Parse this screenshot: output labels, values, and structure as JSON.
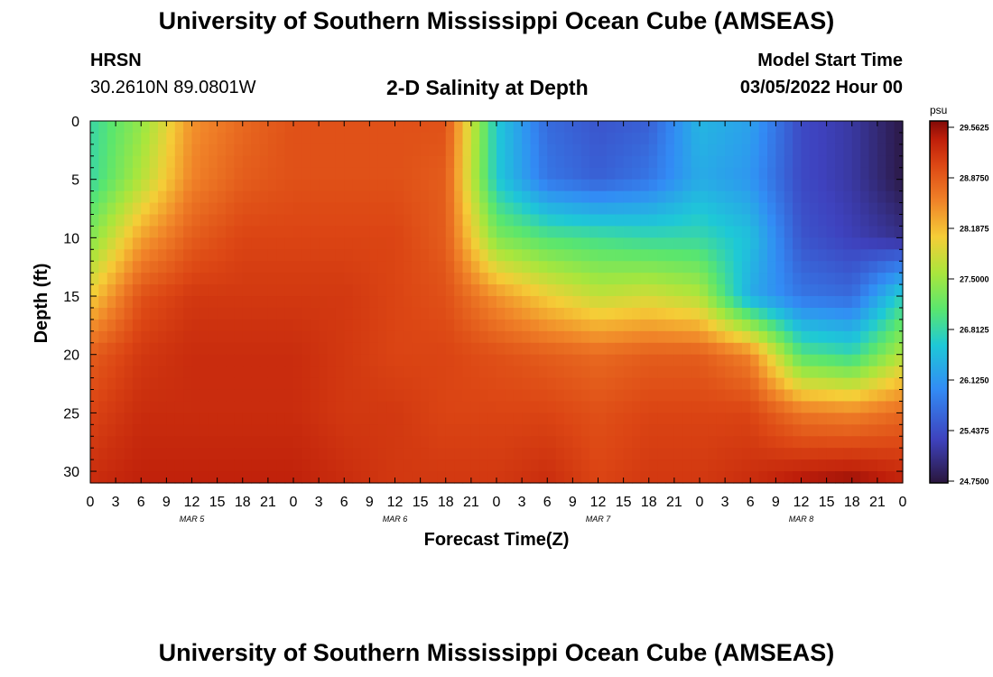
{
  "header": {
    "title": "University of Southern Mississippi Ocean Cube (AMSEAS)",
    "station_name": "HRSN",
    "station_coords": "30.2610N  89.0801W",
    "plot_title": "2-D Salinity at Depth",
    "model_start_label": "Model Start Time",
    "model_start_value": "03/05/2022 Hour 00"
  },
  "footer": {
    "repeat_title": "University of Southern Mississippi Ocean Cube (AMSEAS)"
  },
  "chart_data": {
    "type": "heatmap",
    "xlabel": "Forecast Time(Z)",
    "ylabel": "Depth (ft)",
    "x_hours": [
      0,
      3,
      6,
      9,
      12,
      15,
      18,
      21,
      24,
      27,
      30,
      33,
      36,
      39,
      42,
      45,
      48,
      51,
      54,
      57,
      60,
      63,
      66,
      69,
      72,
      75,
      78,
      81,
      84,
      87,
      90,
      93,
      96
    ],
    "x_tick_labels": [
      "0",
      "3",
      "6",
      "9",
      "12",
      "15",
      "18",
      "21",
      "0",
      "3",
      "6",
      "9",
      "12",
      "15",
      "18",
      "21",
      "0",
      "3",
      "6",
      "9",
      "12",
      "15",
      "18",
      "21",
      "0",
      "3",
      "6",
      "9",
      "12",
      "15",
      "18",
      "21",
      "0"
    ],
    "date_labels": [
      {
        "label": "MAR 5",
        "hour": 12
      },
      {
        "label": "MAR 6",
        "hour": 36
      },
      {
        "label": "MAR 7",
        "hour": 60
      },
      {
        "label": "MAR 8",
        "hour": 84
      }
    ],
    "y_ticks": [
      0,
      5,
      10,
      15,
      20,
      25,
      30
    ],
    "ylim": [
      31,
      0
    ],
    "xlim": [
      0,
      96
    ],
    "depths": [
      0,
      5,
      10,
      15,
      20,
      25,
      31
    ],
    "values": [
      [
        26.8,
        27.4,
        28.4,
        28.7,
        28.9,
        28.9,
        28.9,
        28.9,
        26.6,
        25.7,
        25.5,
        25.6,
        26.4,
        26.2,
        25.4,
        25.2,
        24.8
      ],
      [
        26.8,
        27.6,
        28.5,
        28.8,
        28.9,
        28.9,
        28.9,
        28.8,
        26.6,
        25.8,
        25.6,
        25.8,
        26.3,
        26.1,
        25.4,
        25.2,
        24.8
      ],
      [
        27.3,
        28.3,
        28.8,
        29.0,
        29.0,
        29.0,
        29.0,
        28.8,
        27.3,
        27.0,
        26.9,
        26.8,
        26.8,
        26.5,
        25.5,
        25.3,
        25.1
      ],
      [
        28.0,
        28.9,
        29.1,
        29.1,
        29.1,
        29.1,
        29.0,
        28.9,
        28.4,
        28.0,
        27.7,
        27.8,
        27.6,
        26.3,
        25.8,
        25.7,
        26.7
      ],
      [
        28.8,
        29.1,
        29.2,
        29.2,
        29.2,
        29.1,
        29.0,
        29.0,
        28.9,
        28.8,
        28.7,
        28.8,
        28.8,
        28.5,
        27.0,
        26.8,
        27.6
      ],
      [
        29.0,
        29.2,
        29.2,
        29.2,
        29.2,
        29.1,
        29.1,
        29.0,
        29.0,
        29.0,
        28.9,
        29.0,
        29.0,
        29.0,
        28.6,
        28.5,
        28.7
      ],
      [
        29.2,
        29.3,
        29.3,
        29.3,
        29.3,
        29.2,
        29.1,
        29.1,
        29.1,
        29.2,
        29.0,
        29.1,
        29.1,
        29.2,
        29.4,
        29.5,
        29.3
      ]
    ],
    "value_hours": [
      0,
      6,
      12,
      18,
      24,
      30,
      36,
      42,
      48,
      54,
      60,
      66,
      72,
      78,
      84,
      90,
      96
    ],
    "colorbar": {
      "unit": "psu",
      "tick_labels": [
        "29.5625",
        "28.8750",
        "28.1875",
        "27.5000",
        "26.8125",
        "26.1250",
        "25.4375",
        "24.7500"
      ],
      "min": 24.75,
      "max": 29.5625
    },
    "grid": false
  }
}
